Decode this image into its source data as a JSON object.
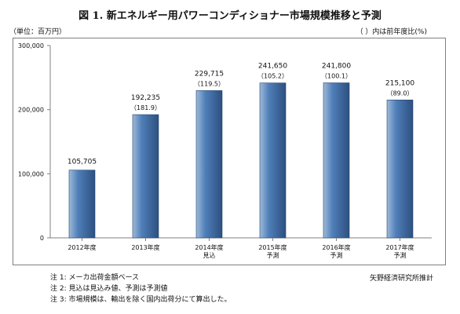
{
  "title": "図 1. 新エネルギー用パワーコンディショナー市場規模推移と予測",
  "unit_label": "（単位：百万円）",
  "paren_note": "（ ）内は前年度比(%)",
  "source": "矢野経済研究所推計",
  "notes": [
    "注 1:  メーカ出荷金額ベース",
    "注 2:  見込は見込み値、予測は予測値",
    "注 3:  市場規模は、輸出を除く国内出荷分にて算出した。"
  ],
  "colors": {
    "bar_light": "#9dbad9",
    "bar_mid": "#4f7eb8",
    "bar_dark": "#2d5080",
    "axis": "#808080"
  },
  "chart_data": {
    "type": "bar",
    "categories": [
      "2012年度",
      "2013年度",
      "2014年度\n見込",
      "2015年度\n予測",
      "2016年度\n予測",
      "2017年度\n予測"
    ],
    "values": [
      105705,
      192235,
      229715,
      241650,
      241800,
      215100
    ],
    "value_labels": [
      "105,705",
      "192,235",
      "229,715",
      "241,650",
      "241,800",
      "215,100"
    ],
    "ratio_labels": [
      "",
      "（181.9）",
      "（119.5）",
      "（105.2）",
      "（100.1）",
      "（89.0）"
    ],
    "ylim": [
      0,
      300000
    ],
    "yticks": [
      0,
      100000,
      200000,
      300000
    ],
    "ytick_labels": [
      "0",
      "100,000",
      "200,000",
      "300,000"
    ],
    "grid": false
  }
}
